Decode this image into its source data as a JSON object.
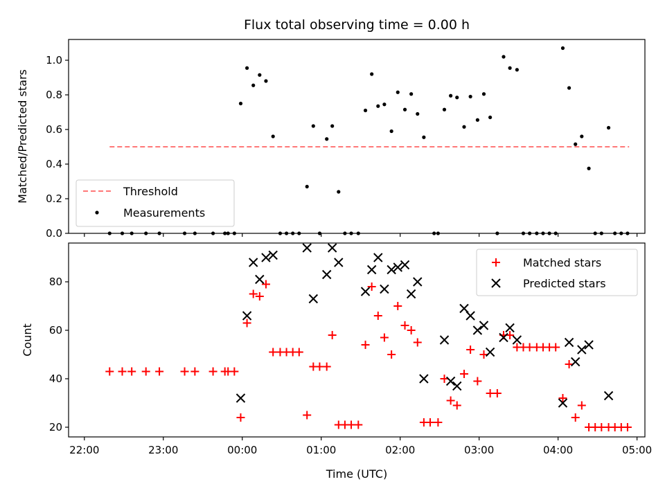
{
  "chart_data": [
    {
      "type": "scatter",
      "title": "Flux total observing time = 0.00 h",
      "xlabel": "",
      "ylabel": "Matched/Predicted stars",
      "xlim": [
        -2.2,
        5.1
      ],
      "ylim": [
        0,
        1.12
      ],
      "yticks": [
        0.0,
        0.2,
        0.4,
        0.6,
        0.8,
        1.0
      ],
      "ytick_labels": [
        "0.0",
        "0.2",
        "0.4",
        "0.6",
        "0.8",
        "1.0"
      ],
      "xticks": [
        -2,
        -1,
        0,
        1,
        2,
        3,
        4,
        5
      ],
      "grid": false,
      "legend": {
        "position": "lower-left",
        "entries": [
          {
            "name": "Threshold",
            "style": "dashed-line",
            "color": "#ff7777"
          },
          {
            "name": "Measurements",
            "style": "dot",
            "color": "#000000"
          }
        ]
      },
      "threshold": {
        "name": "Threshold",
        "y": 0.5,
        "x": [
          -1.68,
          4.9
        ],
        "color": "#ff7777"
      },
      "series": [
        {
          "name": "Measurements",
          "color": "#000000",
          "marker": "dot",
          "points": [
            [
              -1.68,
              0.0
            ],
            [
              -1.52,
              0.0
            ],
            [
              -1.4,
              0.0
            ],
            [
              -1.22,
              0.0
            ],
            [
              -1.05,
              0.0
            ],
            [
              -0.73,
              0.0
            ],
            [
              -0.6,
              0.0
            ],
            [
              -0.37,
              0.0
            ],
            [
              -0.22,
              0.0
            ],
            [
              -0.18,
              0.0
            ],
            [
              -0.1,
              0.0
            ],
            [
              -0.02,
              0.75
            ],
            [
              0.06,
              0.955
            ],
            [
              0.14,
              0.855
            ],
            [
              0.22,
              0.915
            ],
            [
              0.3,
              0.88
            ],
            [
              0.39,
              0.56
            ],
            [
              0.48,
              0.0
            ],
            [
              0.56,
              0.0
            ],
            [
              0.64,
              0.0
            ],
            [
              0.72,
              0.0
            ],
            [
              0.82,
              0.27
            ],
            [
              0.9,
              0.62
            ],
            [
              0.98,
              0.0
            ],
            [
              1.07,
              0.545
            ],
            [
              1.14,
              0.62
            ],
            [
              1.22,
              0.24
            ],
            [
              1.3,
              0.0
            ],
            [
              1.38,
              0.0
            ],
            [
              1.47,
              0.0
            ],
            [
              1.56,
              0.71
            ],
            [
              1.64,
              0.92
            ],
            [
              1.72,
              0.735
            ],
            [
              1.8,
              0.745
            ],
            [
              1.89,
              0.59
            ],
            [
              1.97,
              0.815
            ],
            [
              2.06,
              0.715
            ],
            [
              2.14,
              0.805
            ],
            [
              2.22,
              0.69
            ],
            [
              2.3,
              0.555
            ],
            [
              2.43,
              0.0
            ],
            [
              2.48,
              0.0
            ],
            [
              2.56,
              0.715
            ],
            [
              2.64,
              0.795
            ],
            [
              2.72,
              0.785
            ],
            [
              2.81,
              0.615
            ],
            [
              2.89,
              0.79
            ],
            [
              2.98,
              0.655
            ],
            [
              3.06,
              0.805
            ],
            [
              3.14,
              0.67
            ],
            [
              3.23,
              0.0
            ],
            [
              3.31,
              1.02
            ],
            [
              3.39,
              0.955
            ],
            [
              3.48,
              0.945
            ],
            [
              3.56,
              0.0
            ],
            [
              3.64,
              0.0
            ],
            [
              3.73,
              0.0
            ],
            [
              3.81,
              0.0
            ],
            [
              3.89,
              0.0
            ],
            [
              3.97,
              0.0
            ],
            [
              4.06,
              1.07
            ],
            [
              4.14,
              0.84
            ],
            [
              4.22,
              0.515
            ],
            [
              4.3,
              0.56
            ],
            [
              4.39,
              0.375
            ],
            [
              4.47,
              0.0
            ],
            [
              4.55,
              0.0
            ],
            [
              4.64,
              0.61
            ],
            [
              4.72,
              0.0
            ],
            [
              4.8,
              0.0
            ],
            [
              4.88,
              0.0
            ]
          ]
        }
      ]
    },
    {
      "type": "scatter",
      "title": "",
      "xlabel": "Time (UTC)",
      "ylabel": "Count",
      "xlim": [
        -2.2,
        5.1
      ],
      "ylim": [
        16,
        96
      ],
      "yticks": [
        20,
        40,
        60,
        80
      ],
      "ytick_labels": [
        "20",
        "40",
        "60",
        "80"
      ],
      "xticks": [
        -2,
        -1,
        0,
        1,
        2,
        3,
        4,
        5
      ],
      "xtick_labels": [
        "22:00",
        "23:00",
        "00:00",
        "01:00",
        "02:00",
        "03:00",
        "04:00",
        "05:00"
      ],
      "grid": false,
      "legend": {
        "position": "upper-right",
        "entries": [
          {
            "name": "Matched stars",
            "style": "plus",
            "color": "#ff0000"
          },
          {
            "name": "Predicted stars",
            "style": "cross",
            "color": "#000000"
          }
        ]
      },
      "series": [
        {
          "name": "Matched stars",
          "color": "#ff0000",
          "marker": "plus",
          "points": [
            [
              -1.68,
              43
            ],
            [
              -1.52,
              43
            ],
            [
              -1.4,
              43
            ],
            [
              -1.22,
              43
            ],
            [
              -1.05,
              43
            ],
            [
              -0.73,
              43
            ],
            [
              -0.6,
              43
            ],
            [
              -0.37,
              43
            ],
            [
              -0.22,
              43
            ],
            [
              -0.18,
              43
            ],
            [
              -0.1,
              43
            ],
            [
              -0.02,
              24
            ],
            [
              0.06,
              63
            ],
            [
              0.14,
              75
            ],
            [
              0.22,
              74
            ],
            [
              0.3,
              79
            ],
            [
              0.39,
              51
            ],
            [
              0.48,
              51
            ],
            [
              0.56,
              51
            ],
            [
              0.64,
              51
            ],
            [
              0.72,
              51
            ],
            [
              0.82,
              25
            ],
            [
              0.9,
              45
            ],
            [
              0.98,
              45
            ],
            [
              1.07,
              45
            ],
            [
              1.14,
              58
            ],
            [
              1.22,
              21
            ],
            [
              1.3,
              21
            ],
            [
              1.38,
              21
            ],
            [
              1.47,
              21
            ],
            [
              1.56,
              54
            ],
            [
              1.64,
              78
            ],
            [
              1.72,
              66
            ],
            [
              1.8,
              57
            ],
            [
              1.89,
              50
            ],
            [
              1.97,
              70
            ],
            [
              2.06,
              62
            ],
            [
              2.14,
              60
            ],
            [
              2.22,
              55
            ],
            [
              2.3,
              22
            ],
            [
              2.38,
              22
            ],
            [
              2.48,
              22
            ],
            [
              2.56,
              40
            ],
            [
              2.64,
              31
            ],
            [
              2.72,
              29
            ],
            [
              2.81,
              42
            ],
            [
              2.89,
              52
            ],
            [
              2.98,
              39
            ],
            [
              3.06,
              50
            ],
            [
              3.14,
              34
            ],
            [
              3.23,
              34
            ],
            [
              3.31,
              58
            ],
            [
              3.39,
              58
            ],
            [
              3.48,
              53
            ],
            [
              3.56,
              53
            ],
            [
              3.64,
              53
            ],
            [
              3.73,
              53
            ],
            [
              3.81,
              53
            ],
            [
              3.89,
              53
            ],
            [
              3.97,
              53
            ],
            [
              4.06,
              32
            ],
            [
              4.14,
              46
            ],
            [
              4.22,
              24
            ],
            [
              4.3,
              29
            ],
            [
              4.39,
              20
            ],
            [
              4.47,
              20
            ],
            [
              4.55,
              20
            ],
            [
              4.64,
              20
            ],
            [
              4.72,
              20
            ],
            [
              4.8,
              20
            ],
            [
              4.88,
              20
            ]
          ]
        },
        {
          "name": "Predicted stars",
          "color": "#000000",
          "marker": "cross",
          "points": [
            [
              -0.02,
              32
            ],
            [
              0.06,
              66
            ],
            [
              0.14,
              88
            ],
            [
              0.22,
              81
            ],
            [
              0.3,
              90
            ],
            [
              0.39,
              91
            ],
            [
              0.82,
              94
            ],
            [
              0.9,
              73
            ],
            [
              1.07,
              83
            ],
            [
              1.14,
              94
            ],
            [
              1.22,
              88
            ],
            [
              1.56,
              76
            ],
            [
              1.64,
              85
            ],
            [
              1.72,
              90
            ],
            [
              1.8,
              77
            ],
            [
              1.89,
              85
            ],
            [
              1.97,
              86
            ],
            [
              2.06,
              87
            ],
            [
              2.14,
              75
            ],
            [
              2.22,
              80
            ],
            [
              2.3,
              40
            ],
            [
              2.56,
              56
            ],
            [
              2.64,
              39
            ],
            [
              2.72,
              37
            ],
            [
              2.81,
              69
            ],
            [
              2.89,
              66
            ],
            [
              2.98,
              60
            ],
            [
              3.06,
              62
            ],
            [
              3.14,
              51
            ],
            [
              3.31,
              57
            ],
            [
              3.39,
              61
            ],
            [
              3.48,
              56
            ],
            [
              4.06,
              30
            ],
            [
              4.14,
              55
            ],
            [
              4.22,
              47
            ],
            [
              4.3,
              52
            ],
            [
              4.39,
              54
            ],
            [
              4.64,
              33
            ]
          ]
        }
      ]
    }
  ]
}
